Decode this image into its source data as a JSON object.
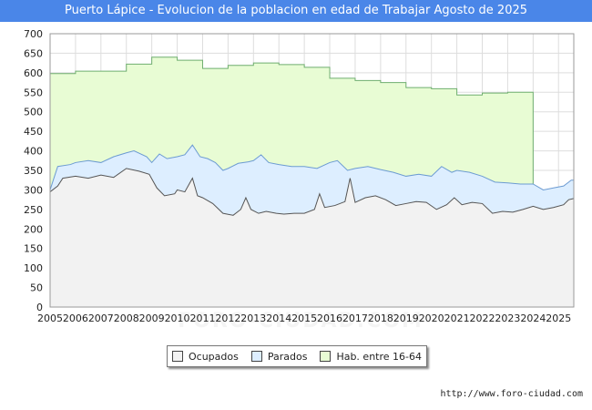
{
  "title": "Puerto Lápice - Evolucion de la poblacion en edad de Trabajar Agosto de 2025",
  "source": "http://www.foro-ciudad.com",
  "watermark": "FORO-CIUDAD.COM",
  "colors": {
    "title_bg": "#4a86e8",
    "hab_fill": "#e8fcd4",
    "hab_line": "#6fae6f",
    "parados_fill": "#ddeeff",
    "parados_line": "#6c9bd2",
    "ocupados_fill": "#f2f2f2",
    "ocupados_line": "#555555"
  },
  "legend": [
    {
      "label": "Ocupados",
      "color": "#f2f2f2"
    },
    {
      "label": "Parados",
      "color": "#ddeeff"
    },
    {
      "label": "Hab. entre 16-64",
      "color": "#e8fcd4"
    }
  ],
  "chart_data": {
    "type": "area",
    "title": "Puerto Lápice - Evolucion de la poblacion en edad de Trabajar Agosto de 2025",
    "xlabel": "",
    "ylabel": "",
    "ylim": [
      0,
      700
    ],
    "yticks": [
      0,
      50,
      100,
      150,
      200,
      250,
      300,
      350,
      400,
      450,
      500,
      550,
      600,
      650,
      700
    ],
    "xticks": [
      "2005",
      "2006",
      "2007",
      "2008",
      "2009",
      "2010",
      "2011",
      "2012",
      "2013",
      "2014",
      "2015",
      "2016",
      "2017",
      "2018",
      "2019",
      "2020",
      "2021",
      "2022",
      "2023",
      "2024",
      "2025"
    ],
    "x_range": [
      2005.0,
      2025.6
    ],
    "grid": true,
    "legend_position": "bottom",
    "series": [
      {
        "name": "Hab. entre 16-64",
        "kind": "annual-step",
        "years": [
          2005,
          2006,
          2007,
          2008,
          2009,
          2010,
          2011,
          2012,
          2013,
          2014,
          2015,
          2016,
          2017,
          2018,
          2019,
          2020,
          2021,
          2022,
          2023
        ],
        "values": [
          598,
          604,
          604,
          622,
          640,
          632,
          611,
          619,
          625,
          621,
          614,
          586,
          580,
          575,
          562,
          559,
          543,
          548,
          550
        ],
        "ends_at": 2024.0
      },
      {
        "name": "Parados",
        "kind": "monthly-total",
        "points": [
          [
            2005.0,
            300
          ],
          [
            2005.3,
            360
          ],
          [
            2005.8,
            365
          ],
          [
            2006.0,
            370
          ],
          [
            2006.5,
            375
          ],
          [
            2007.0,
            370
          ],
          [
            2007.5,
            385
          ],
          [
            2008.0,
            395
          ],
          [
            2008.3,
            400
          ],
          [
            2008.8,
            385
          ],
          [
            2009.0,
            370
          ],
          [
            2009.3,
            392
          ],
          [
            2009.6,
            380
          ],
          [
            2010.0,
            385
          ],
          [
            2010.3,
            390
          ],
          [
            2010.6,
            415
          ],
          [
            2010.9,
            385
          ],
          [
            2011.2,
            380
          ],
          [
            2011.5,
            370
          ],
          [
            2011.8,
            350
          ],
          [
            2012.0,
            355
          ],
          [
            2012.4,
            368
          ],
          [
            2012.8,
            372
          ],
          [
            2013.0,
            375
          ],
          [
            2013.3,
            390
          ],
          [
            2013.6,
            370
          ],
          [
            2014.0,
            365
          ],
          [
            2014.5,
            360
          ],
          [
            2015.0,
            360
          ],
          [
            2015.5,
            355
          ],
          [
            2016.0,
            370
          ],
          [
            2016.3,
            375
          ],
          [
            2016.7,
            350
          ],
          [
            2017.0,
            355
          ],
          [
            2017.5,
            360
          ],
          [
            2018.0,
            352
          ],
          [
            2018.5,
            345
          ],
          [
            2019.0,
            335
          ],
          [
            2019.5,
            340
          ],
          [
            2020.0,
            335
          ],
          [
            2020.4,
            360
          ],
          [
            2020.8,
            345
          ],
          [
            2021.0,
            350
          ],
          [
            2021.5,
            345
          ],
          [
            2022.0,
            335
          ],
          [
            2022.5,
            320
          ],
          [
            2023.0,
            318
          ],
          [
            2023.5,
            315
          ],
          [
            2024.0,
            315
          ],
          [
            2024.4,
            300
          ],
          [
            2024.8,
            305
          ],
          [
            2025.2,
            310
          ],
          [
            2025.5,
            325
          ],
          [
            2025.6,
            325
          ]
        ]
      },
      {
        "name": "Ocupados",
        "kind": "monthly",
        "points": [
          [
            2005.0,
            295
          ],
          [
            2005.3,
            310
          ],
          [
            2005.5,
            330
          ],
          [
            2006.0,
            335
          ],
          [
            2006.5,
            330
          ],
          [
            2007.0,
            338
          ],
          [
            2007.5,
            332
          ],
          [
            2008.0,
            355
          ],
          [
            2008.5,
            348
          ],
          [
            2008.9,
            340
          ],
          [
            2009.2,
            305
          ],
          [
            2009.5,
            285
          ],
          [
            2009.9,
            290
          ],
          [
            2010.0,
            300
          ],
          [
            2010.3,
            295
          ],
          [
            2010.6,
            330
          ],
          [
            2010.8,
            285
          ],
          [
            2011.0,
            280
          ],
          [
            2011.4,
            265
          ],
          [
            2011.8,
            240
          ],
          [
            2012.2,
            235
          ],
          [
            2012.5,
            250
          ],
          [
            2012.7,
            280
          ],
          [
            2012.9,
            250
          ],
          [
            2013.2,
            240
          ],
          [
            2013.5,
            245
          ],
          [
            2013.9,
            240
          ],
          [
            2014.2,
            238
          ],
          [
            2014.6,
            240
          ],
          [
            2015.0,
            240
          ],
          [
            2015.4,
            250
          ],
          [
            2015.6,
            290
          ],
          [
            2015.8,
            255
          ],
          [
            2016.2,
            260
          ],
          [
            2016.6,
            270
          ],
          [
            2016.8,
            330
          ],
          [
            2017.0,
            268
          ],
          [
            2017.4,
            280
          ],
          [
            2017.8,
            285
          ],
          [
            2018.2,
            275
          ],
          [
            2018.6,
            260
          ],
          [
            2019.0,
            265
          ],
          [
            2019.4,
            270
          ],
          [
            2019.8,
            268
          ],
          [
            2020.2,
            250
          ],
          [
            2020.6,
            262
          ],
          [
            2020.9,
            280
          ],
          [
            2021.2,
            262
          ],
          [
            2021.6,
            268
          ],
          [
            2022.0,
            265
          ],
          [
            2022.4,
            240
          ],
          [
            2022.8,
            245
          ],
          [
            2023.2,
            243
          ],
          [
            2023.6,
            250
          ],
          [
            2024.0,
            258
          ],
          [
            2024.4,
            250
          ],
          [
            2024.8,
            255
          ],
          [
            2025.2,
            262
          ],
          [
            2025.4,
            275
          ],
          [
            2025.6,
            278
          ]
        ]
      }
    ]
  }
}
